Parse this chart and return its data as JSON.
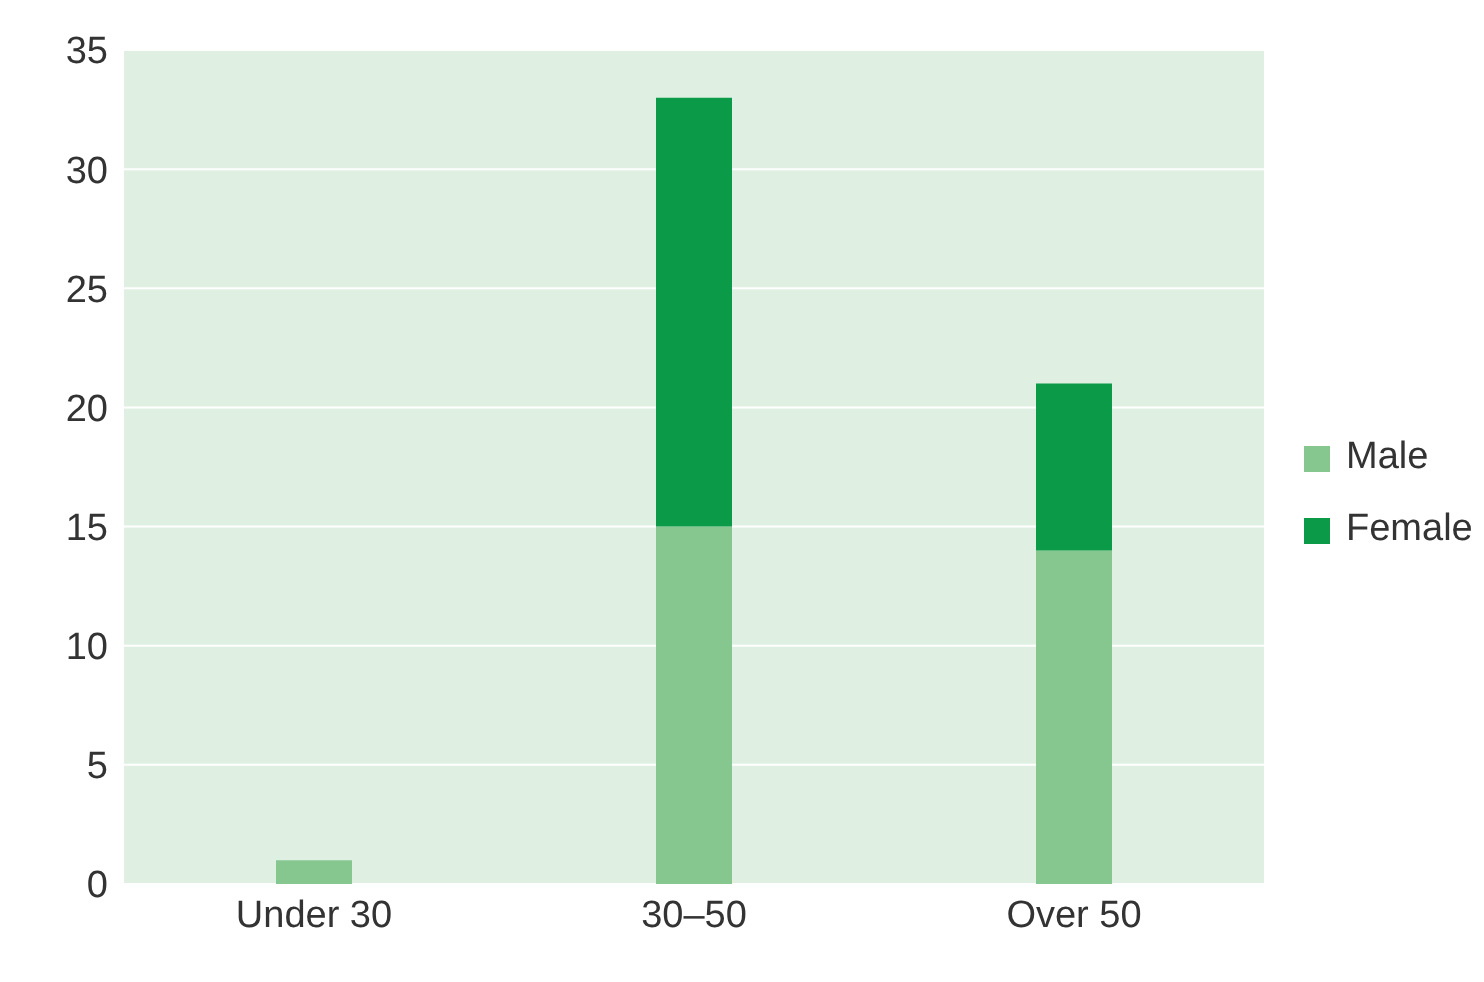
{
  "chart_data": {
    "type": "bar",
    "stacked": true,
    "categories": [
      "Under 30",
      "30–50",
      "Over 50"
    ],
    "series": [
      {
        "name": "Male",
        "color": "#85c78f",
        "values": [
          1,
          15,
          14
        ]
      },
      {
        "name": "Female",
        "color": "#0a9a48",
        "values": [
          0,
          18,
          7
        ]
      }
    ],
    "ylim": [
      0,
      35
    ],
    "yticks": [
      0,
      5,
      10,
      15,
      20,
      25,
      30,
      35
    ],
    "grid": "y",
    "legend": "right"
  }
}
